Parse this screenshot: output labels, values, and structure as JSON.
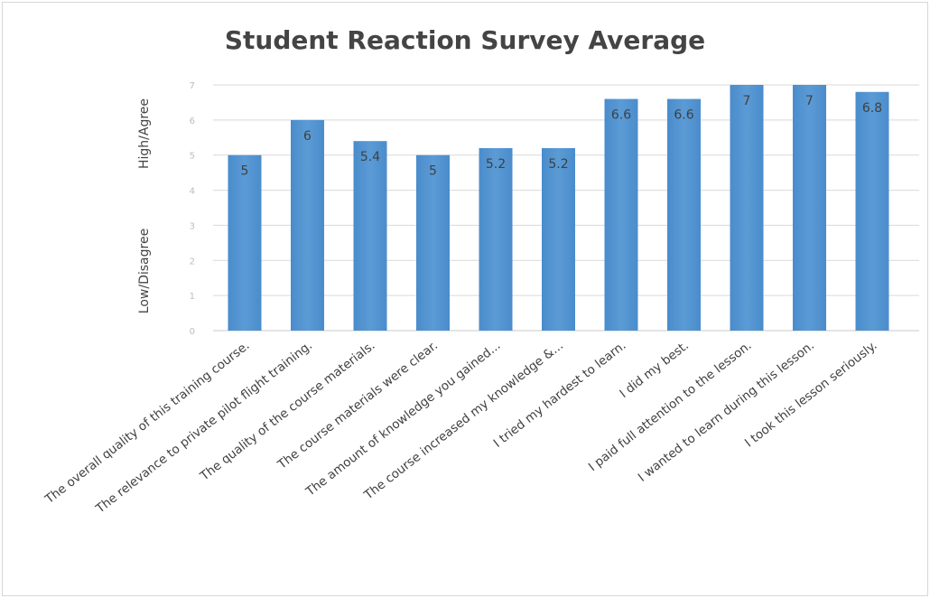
{
  "chart_data": {
    "type": "bar",
    "title": "Student Reaction Survey Average",
    "categories": [
      "The overall quality of this training course.",
      "The relevance to private pilot flight training.",
      "The quality of the course materials.",
      "The course materials were clear.",
      "The amount of knowledge you gained...",
      "The course increased my knowledge &...",
      "I tried my hardest to learn.",
      "I did my best.",
      "I paid full attention to the lesson.",
      "I wanted to learn during this lesson.",
      "I took this lesson seriously."
    ],
    "values": [
      5,
      6,
      5.4,
      5,
      5.2,
      5.2,
      6.6,
      6.6,
      7,
      7,
      6.8
    ],
    "data_labels": [
      "5",
      "6",
      "5.4",
      "5",
      "5.2",
      "5.2",
      "6.6",
      "6.6",
      "7",
      "7",
      "6.8"
    ],
    "y_ticks": [
      "0",
      "1",
      "2",
      "3",
      "4",
      "5",
      "6",
      "7"
    ],
    "ylim": [
      0,
      7
    ],
    "ylabel_high": "High/Agree",
    "ylabel_low": "Low/Disagree",
    "bar_color": "#5b9bd5",
    "grid": true
  }
}
